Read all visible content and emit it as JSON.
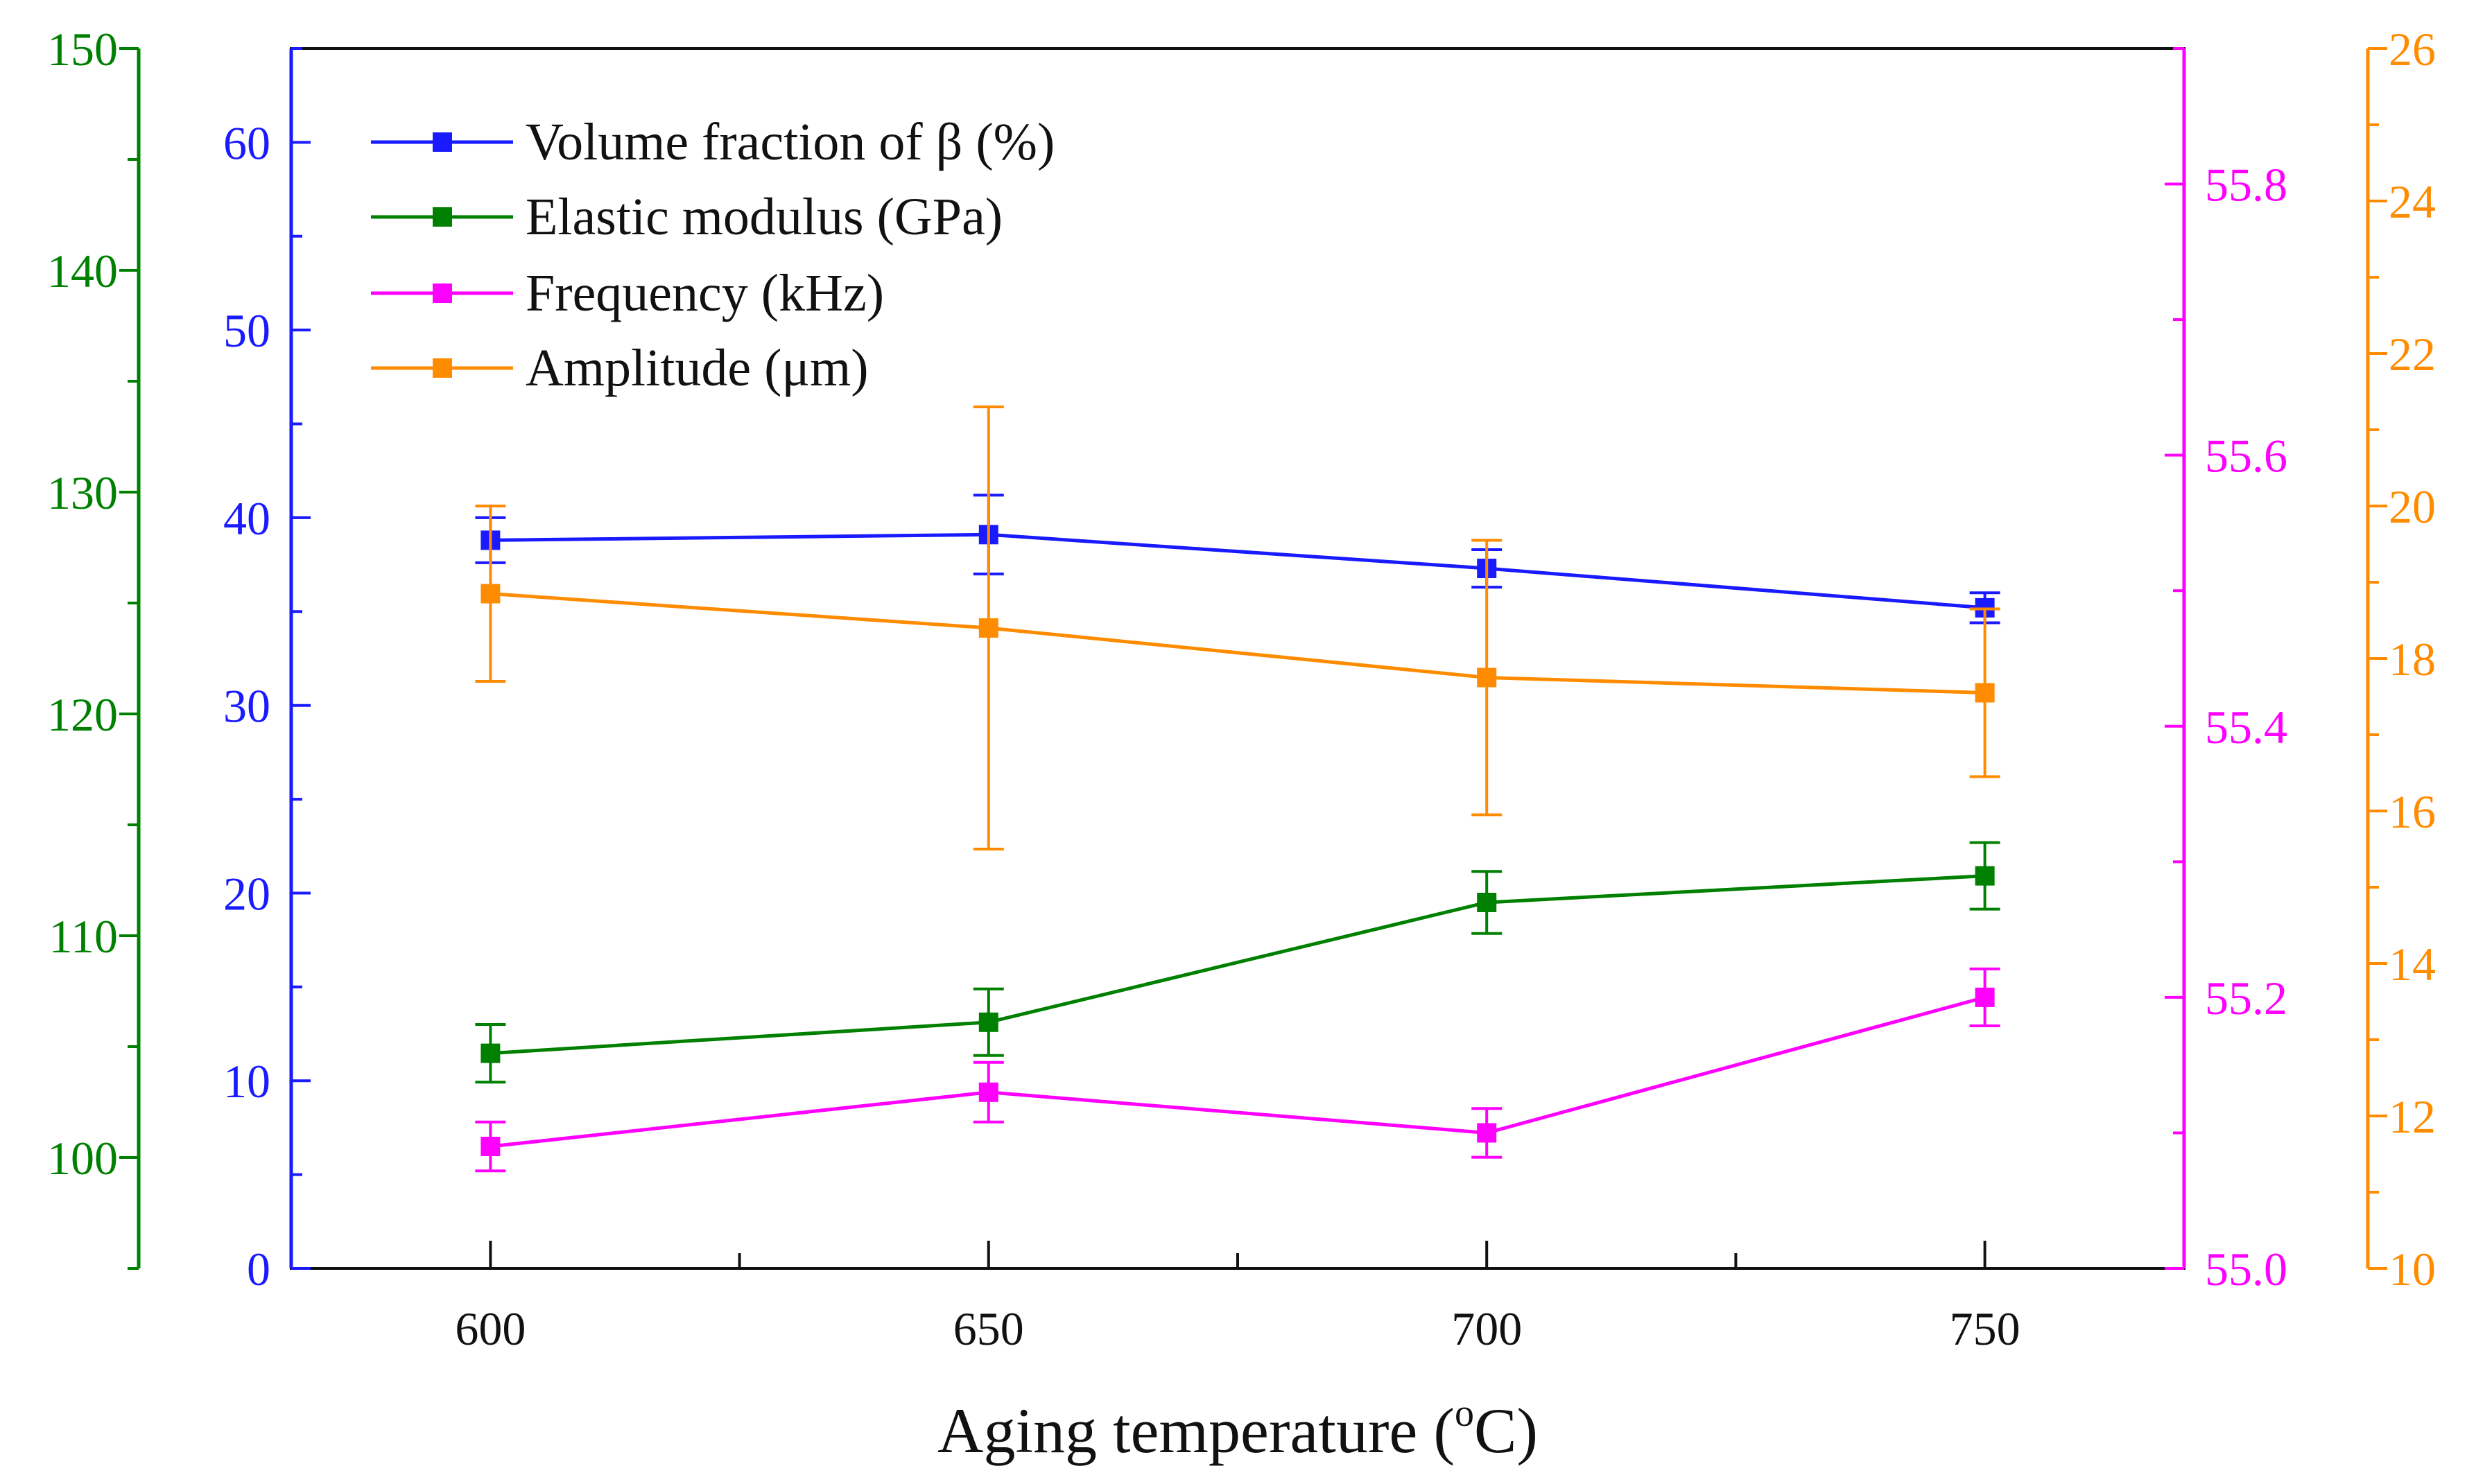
{
  "chart_data": {
    "type": "line",
    "xlabel": "Aging temperature (°C)",
    "xlabel_parts": {
      "pre": "Aging temperature (",
      "sup": "o",
      "post": "C)"
    },
    "x": [
      600,
      650,
      700,
      750
    ],
    "x_ticks": [
      "600",
      "650",
      "700",
      "750"
    ],
    "xlim": [
      580,
      770
    ],
    "axes": {
      "volume": {
        "side": "left-inner",
        "color": "#1a1aff",
        "ylim": [
          0,
          65
        ],
        "ticks": [
          "0",
          "10",
          "20",
          "30",
          "40",
          "50",
          "60"
        ]
      },
      "modulus": {
        "side": "left-outer",
        "color": "#008000",
        "ylim": [
          95,
          150
        ],
        "ticks": [
          "100",
          "110",
          "120",
          "130",
          "140",
          "150"
        ]
      },
      "frequency": {
        "side": "right-inner",
        "color": "#ff00ff",
        "ylim": [
          55.0,
          55.9
        ],
        "ticks": [
          "55.0",
          "55.2",
          "55.4",
          "55.6",
          "55.8"
        ]
      },
      "amplitude": {
        "side": "right-outer",
        "color": "#ff8c00",
        "ylim": [
          10,
          26
        ],
        "ticks": [
          "10",
          "12",
          "14",
          "16",
          "18",
          "20",
          "22",
          "24",
          "26"
        ]
      }
    },
    "series": [
      {
        "name": "Volume fraction of β (%)",
        "axis": "volume",
        "color": "#1a1aff",
        "values": [
          38.8,
          39.1,
          37.3,
          35.2
        ],
        "errors": [
          1.2,
          2.1,
          1.0,
          0.8
        ]
      },
      {
        "name": "Elastic modulus (GPa)",
        "axis": "modulus",
        "color": "#008000",
        "values": [
          104.7,
          106.1,
          111.5,
          112.7
        ],
        "errors": [
          1.3,
          1.5,
          1.4,
          1.5
        ]
      },
      {
        "name": "Frequency (kHz)",
        "axis": "frequency",
        "color": "#ff00ff",
        "values": [
          55.09,
          55.13,
          55.1,
          55.2
        ],
        "errors": [
          0.018,
          0.022,
          0.018,
          0.021
        ]
      },
      {
        "name": "Amplitude (μm)",
        "axis": "amplitude",
        "color": "#ff8c00",
        "values": [
          18.85,
          18.4,
          17.75,
          17.55
        ],
        "errors": [
          1.15,
          2.9,
          1.8,
          1.1
        ]
      }
    ],
    "legend": "top-left"
  }
}
